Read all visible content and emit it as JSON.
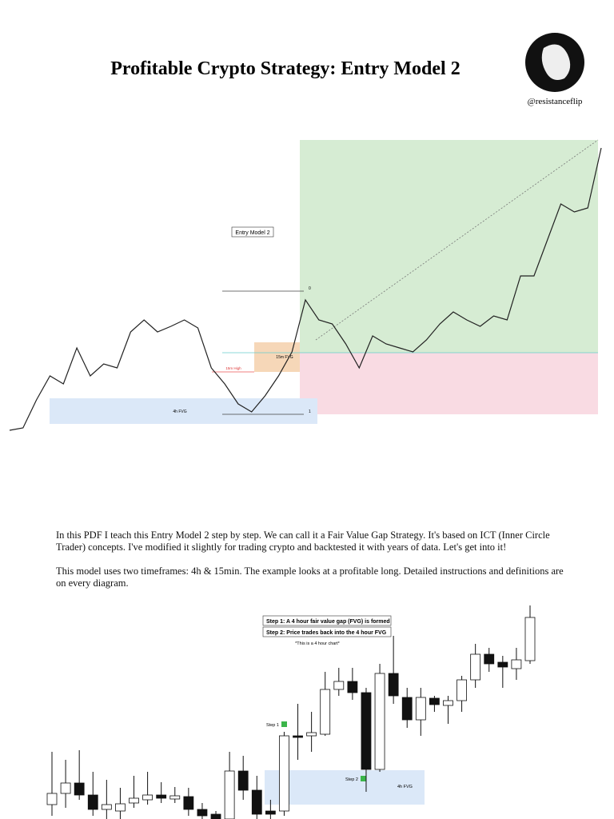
{
  "header": {
    "title": "Profitable Crypto Strategy: Entry Model 2",
    "handle": "@resistanceflip"
  },
  "figure1": {
    "label": "Entry Model 2",
    "fvg_15m": "15m FVG",
    "high_15m": "15m High",
    "fvg_4h": "4h FVG",
    "fib": [
      "0",
      "1"
    ],
    "ylim": [
      0,
      380
    ],
    "prices": [
      7,
      10,
      45,
      75,
      65,
      110,
      75,
      90,
      85,
      130,
      145,
      130,
      137,
      145,
      135,
      85,
      65,
      40,
      30,
      50,
      75,
      105,
      170,
      145,
      140,
      115,
      85,
      125,
      115,
      110,
      105,
      120,
      140,
      155,
      145,
      137,
      150,
      145,
      200,
      200,
      245,
      290,
      280,
      285,
      360
    ]
  },
  "paragraphs": [
    "In this PDF I teach this Entry Model 2 step by step. We can call it a Fair Value Gap Strategy. It's based on ICT (Inner Circle Trader) concepts. I've modified it slightly for trading crypto and backtested it with years of data. Let's get into it!",
    "This model uses two timeframes: 4h & 15min. The example looks at a profitable long. Detailed instructions and definitions are on every diagram."
  ],
  "figure2": {
    "steps": [
      "Step 1: A 4 hour fair value gap (FVG) is formed",
      "Step 2: Price trades back into the 4 hour FVG"
    ],
    "note": "*This is a 4 hour chart*",
    "step_tags": [
      "Step 1",
      "Step 2"
    ],
    "zone": "4h FVG",
    "ylim": [
      0,
      269
    ],
    "candles": [
      [
        18,
        84,
        4,
        32
      ],
      [
        32,
        74,
        14,
        45
      ],
      [
        45,
        86,
        24,
        30
      ],
      [
        30,
        59,
        4,
        12
      ],
      [
        12,
        49,
        0,
        18
      ],
      [
        10,
        39,
        0,
        19
      ],
      [
        20,
        54,
        14,
        26
      ],
      [
        24,
        59,
        18,
        30
      ],
      [
        30,
        46,
        20,
        26
      ],
      [
        25,
        40,
        20,
        29
      ],
      [
        28,
        39,
        4,
        12
      ],
      [
        12,
        20,
        0,
        4
      ],
      [
        6,
        10,
        0,
        0
      ],
      [
        0,
        84,
        0,
        60
      ],
      [
        60,
        79,
        24,
        36
      ],
      [
        36,
        54,
        0,
        6
      ],
      [
        10,
        24,
        0,
        6
      ],
      [
        10,
        109,
        4,
        104
      ],
      [
        104,
        144,
        74,
        102
      ],
      [
        104,
        134,
        84,
        108
      ],
      [
        106,
        184,
        104,
        162
      ],
      [
        162,
        189,
        154,
        172
      ],
      [
        172,
        189,
        149,
        158
      ],
      [
        158,
        164,
        34,
        62
      ],
      [
        62,
        194,
        59,
        182
      ],
      [
        182,
        229,
        144,
        154
      ],
      [
        152,
        164,
        114,
        124
      ],
      [
        124,
        164,
        104,
        152
      ],
      [
        151,
        154,
        134,
        143
      ],
      [
        142,
        154,
        119,
        148
      ],
      [
        148,
        179,
        134,
        174
      ],
      [
        174,
        219,
        164,
        206
      ],
      [
        206,
        214,
        184,
        194
      ],
      [
        196,
        204,
        164,
        190
      ],
      [
        188,
        214,
        174,
        199
      ],
      [
        198,
        267,
        194,
        252
      ]
    ]
  }
}
